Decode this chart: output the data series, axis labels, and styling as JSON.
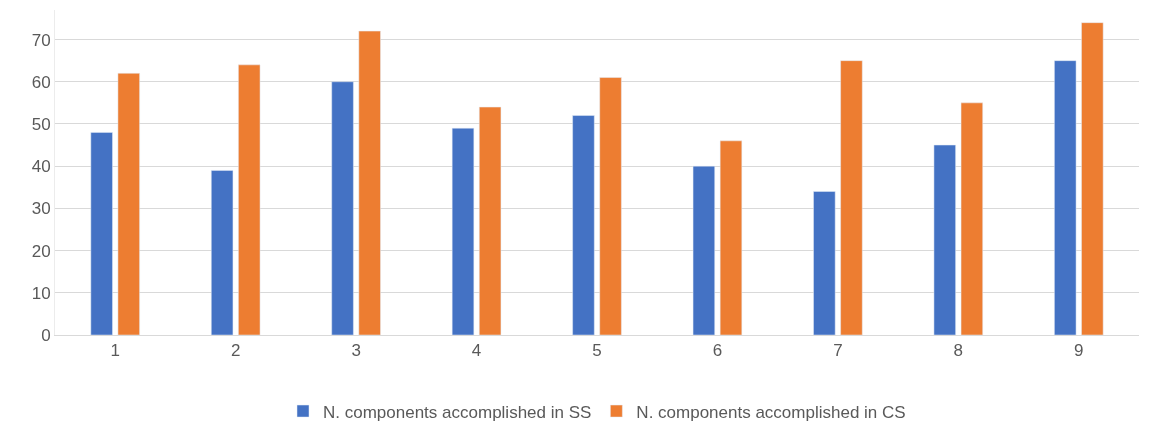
{
  "chart_data": {
    "type": "bar",
    "categories": [
      "1",
      "2",
      "3",
      "4",
      "5",
      "6",
      "7",
      "8",
      "9"
    ],
    "series": [
      {
        "name": "N. components accomplished in SS",
        "color": "#4472c4",
        "values": [
          48,
          39,
          60,
          49,
          52,
          40,
          34,
          45,
          65
        ]
      },
      {
        "name": "N. components accomplished in CS",
        "color": "#ed7d31",
        "values": [
          62,
          64,
          72,
          54,
          61,
          46,
          65,
          55,
          74
        ]
      }
    ],
    "ylim": [
      0,
      77
    ],
    "yticks": [
      0,
      10,
      20,
      30,
      40,
      50,
      60,
      70
    ],
    "grid": "y",
    "legend": "bottom"
  }
}
